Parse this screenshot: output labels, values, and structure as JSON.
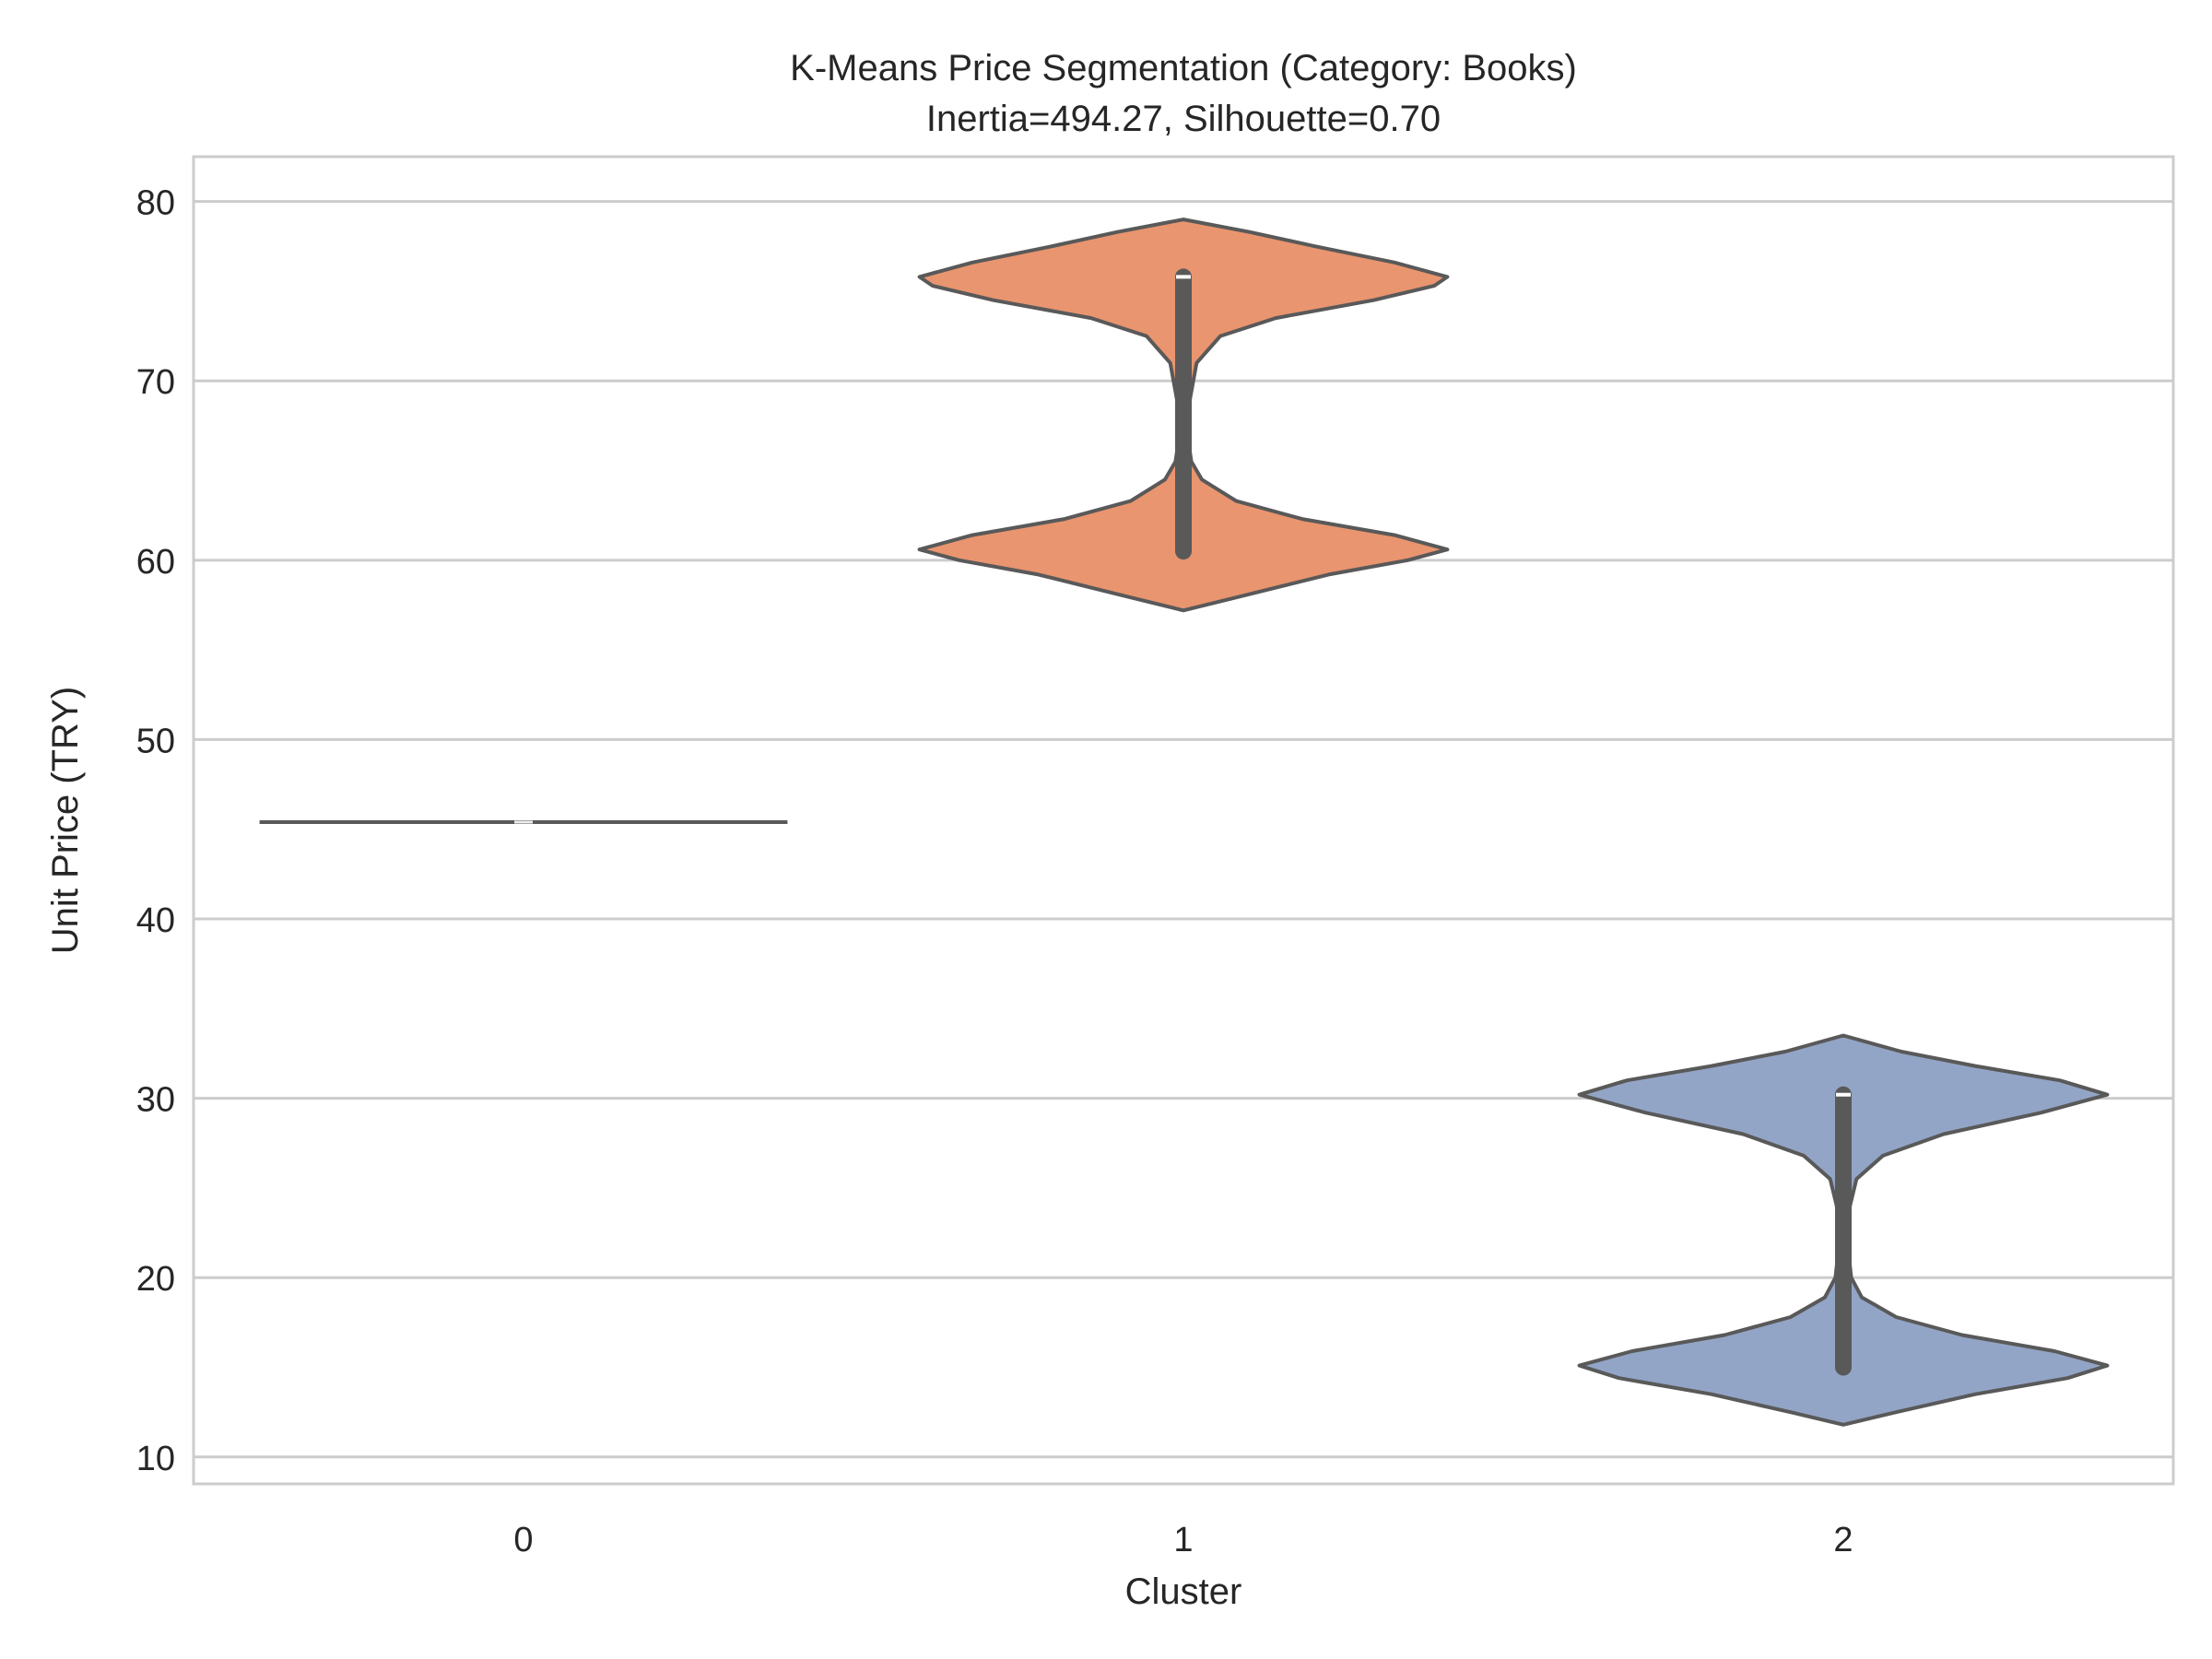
{
  "chart_data": {
    "type": "violin",
    "title": "K-Means Price Segmentation (Category: Books)",
    "subtitle": "Inertia=494.27, Silhouette=0.70",
    "xlabel": "Cluster",
    "ylabel": "Unit Price (TRY)",
    "categories": [
      "0",
      "1",
      "2"
    ],
    "ylim": [
      8.5,
      82.5
    ],
    "yticks": [
      10,
      20,
      30,
      40,
      50,
      60,
      70,
      80
    ],
    "grid": true,
    "colors": {
      "0": "#66c2a5",
      "1": "#e9956f",
      "2": "#93a5c6",
      "outline": "#595959",
      "grid": "#cccccc",
      "median": "#ffffff"
    },
    "series": [
      {
        "category": "0",
        "min": 45.4,
        "max": 45.4,
        "q1": 45.4,
        "median": 45.4,
        "q3": 45.4,
        "whisker_low": 45.4,
        "whisker_high": 45.4,
        "modes": [
          45.4
        ],
        "degenerate": true
      },
      {
        "category": "1",
        "min": 57.2,
        "max": 79.0,
        "q1": 60.5,
        "median": 75.8,
        "q3": 75.8,
        "whisker_low": 60.5,
        "whisker_high": 75.8,
        "modes": [
          60.6,
          75.8
        ],
        "density": [
          [
            57.2,
            0.0
          ],
          [
            58.0,
            0.22
          ],
          [
            59.2,
            0.55
          ],
          [
            60.0,
            0.85
          ],
          [
            60.6,
            1.0
          ],
          [
            61.4,
            0.8
          ],
          [
            62.3,
            0.45
          ],
          [
            63.3,
            0.2
          ],
          [
            64.5,
            0.07
          ],
          [
            65.5,
            0.03
          ],
          [
            67.0,
            0.015
          ],
          [
            69.0,
            0.025
          ],
          [
            71.0,
            0.05
          ],
          [
            72.5,
            0.14
          ],
          [
            73.5,
            0.35
          ],
          [
            74.5,
            0.72
          ],
          [
            75.3,
            0.95
          ],
          [
            75.8,
            1.0
          ],
          [
            76.6,
            0.8
          ],
          [
            77.5,
            0.5
          ],
          [
            78.3,
            0.25
          ],
          [
            79.0,
            0.0
          ]
        ]
      },
      {
        "category": "2",
        "min": 11.8,
        "max": 33.5,
        "q1": 15.0,
        "median": 30.2,
        "q3": 30.2,
        "whisker_low": 15.0,
        "whisker_high": 30.2,
        "modes": [
          15.1,
          30.2
        ],
        "density": [
          [
            11.8,
            0.0
          ],
          [
            12.5,
            0.2
          ],
          [
            13.5,
            0.5
          ],
          [
            14.4,
            0.85
          ],
          [
            15.1,
            1.0
          ],
          [
            15.9,
            0.8
          ],
          [
            16.8,
            0.45
          ],
          [
            17.8,
            0.2
          ],
          [
            18.9,
            0.07
          ],
          [
            20.0,
            0.03
          ],
          [
            22.0,
            0.015
          ],
          [
            24.0,
            0.025
          ],
          [
            25.5,
            0.05
          ],
          [
            26.8,
            0.15
          ],
          [
            28.0,
            0.38
          ],
          [
            29.2,
            0.75
          ],
          [
            30.2,
            1.0
          ],
          [
            31.0,
            0.82
          ],
          [
            31.8,
            0.5
          ],
          [
            32.6,
            0.22
          ],
          [
            33.5,
            0.0
          ]
        ]
      }
    ]
  }
}
